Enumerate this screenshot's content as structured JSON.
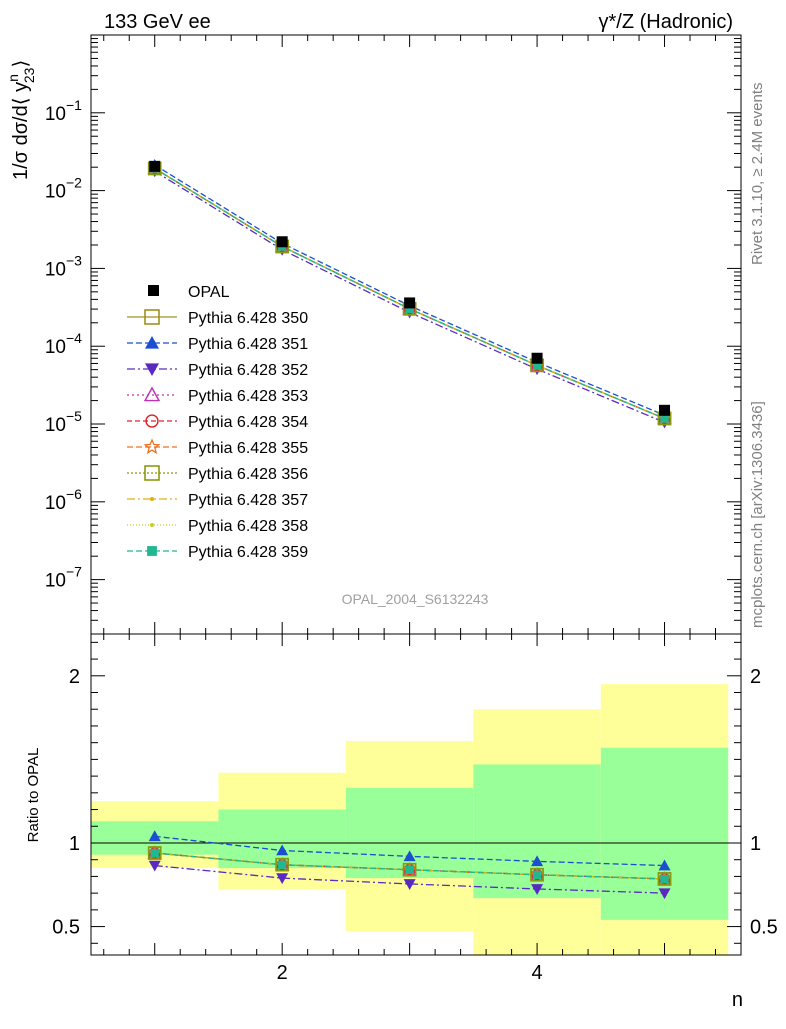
{
  "header": {
    "left": "133 GeV ee",
    "right": "γ*/Z (Hadronic)"
  },
  "side_labels": {
    "rivet": "Rivet 3.1.10, ≥ 2.4M events",
    "mcplots": "mcplots.cern.ch [arXiv:1306.3436]"
  },
  "watermark": "OPAL_2004_S6132243",
  "chart_data": {
    "type": "line",
    "x_label": "n",
    "x_range": [
      0.5,
      5.6
    ],
    "x_ticks": [
      2,
      4
    ],
    "top_panel": {
      "y_label_main": "1/σ dσ/d⟨ y",
      "y_label_sup": "n",
      "y_label_sub": "23",
      "y_label_tail": "⟩",
      "y_scale": "log",
      "y_range": [
        2e-08,
        1
      ],
      "y_ticks": [
        {
          "value": 1e-07,
          "mantissa": "10",
          "exp": "−7"
        },
        {
          "value": 1e-06,
          "mantissa": "10",
          "exp": "−6"
        },
        {
          "value": 1e-05,
          "mantissa": "10",
          "exp": "−5"
        },
        {
          "value": 0.0001,
          "mantissa": "10",
          "exp": "−4"
        },
        {
          "value": 0.001,
          "mantissa": "10",
          "exp": "−3"
        },
        {
          "value": 0.01,
          "mantissa": "10",
          "exp": "−2"
        },
        {
          "value": 0.1,
          "mantissa": "10",
          "exp": "−1"
        }
      ],
      "data_points": {
        "name": "OPAL",
        "x": [
          1,
          2,
          3,
          4,
          5
        ],
        "y": [
          0.0205,
          0.0022,
          0.00036,
          7e-05,
          1.5e-05
        ]
      }
    },
    "ratio_panel": {
      "y_label": "Ratio to OPAL",
      "y_range": [
        0.33,
        2.25
      ],
      "y_ticks": [
        0.5,
        1,
        2
      ],
      "y_tick_labels": [
        "0.5",
        "1",
        "2"
      ],
      "bands": [
        {
          "x0": 0.5,
          "x1": 1.5,
          "green": [
            0.93,
            1.13
          ],
          "yellow": [
            0.85,
            1.25
          ]
        },
        {
          "x0": 1.5,
          "x1": 2.5,
          "green": [
            0.85,
            1.2
          ],
          "yellow": [
            0.72,
            1.42
          ]
        },
        {
          "x0": 2.5,
          "x1": 3.5,
          "green": [
            0.79,
            1.33
          ],
          "yellow": [
            0.47,
            1.61
          ]
        },
        {
          "x0": 3.5,
          "x1": 4.5,
          "green": [
            0.67,
            1.47
          ],
          "yellow": [
            0.3,
            1.8
          ]
        },
        {
          "x0": 4.5,
          "x1": 5.5,
          "green": [
            0.54,
            1.57
          ],
          "yellow": [
            0.3,
            1.95
          ]
        }
      ]
    },
    "series": [
      {
        "name": "Pythia 6.428 350",
        "color": "#a09020",
        "marker": "square-open",
        "dash": "",
        "ratio": [
          0.94,
          0.87,
          0.84,
          0.81,
          0.785
        ]
      },
      {
        "name": "Pythia 6.428 351",
        "color": "#1a4fcf",
        "marker": "triangle-up",
        "dash": "6,3",
        "ratio": [
          1.04,
          0.955,
          0.92,
          0.89,
          0.865
        ]
      },
      {
        "name": "Pythia 6.428 352",
        "color": "#5a2ac0",
        "marker": "triangle-down",
        "dash": "8,3,2,3",
        "ratio": [
          0.865,
          0.79,
          0.755,
          0.725,
          0.7
        ]
      },
      {
        "name": "Pythia 6.428 353",
        "color": "#c030b0",
        "marker": "triangle-up-open",
        "dash": "2,3",
        "ratio": [
          0.94,
          0.87,
          0.84,
          0.81,
          0.785
        ]
      },
      {
        "name": "Pythia 6.428 354",
        "color": "#e0202a",
        "marker": "circle-open",
        "dash": "5,3",
        "ratio": [
          0.94,
          0.87,
          0.84,
          0.81,
          0.785
        ]
      },
      {
        "name": "Pythia 6.428 355",
        "color": "#f07020",
        "marker": "star-open",
        "dash": "6,3",
        "ratio": [
          0.94,
          0.87,
          0.84,
          0.81,
          0.785
        ]
      },
      {
        "name": "Pythia 6.428 356",
        "color": "#8a9a10",
        "marker": "square-open",
        "dash": "2,2",
        "ratio": [
          0.94,
          0.87,
          0.84,
          0.81,
          0.785
        ]
      },
      {
        "name": "Pythia 6.428 357",
        "color": "#e0b010",
        "marker": "dot",
        "dash": "8,3,2,3",
        "ratio": [
          0.94,
          0.87,
          0.84,
          0.81,
          0.785
        ]
      },
      {
        "name": "Pythia 6.428 358",
        "color": "#c8d020",
        "marker": "dot",
        "dash": "1,2",
        "ratio": [
          0.94,
          0.87,
          0.84,
          0.81,
          0.785
        ]
      },
      {
        "name": "Pythia 6.428 359",
        "color": "#20b890",
        "marker": "square",
        "dash": "6,3",
        "ratio": [
          0.94,
          0.87,
          0.84,
          0.81,
          0.785
        ]
      }
    ]
  }
}
